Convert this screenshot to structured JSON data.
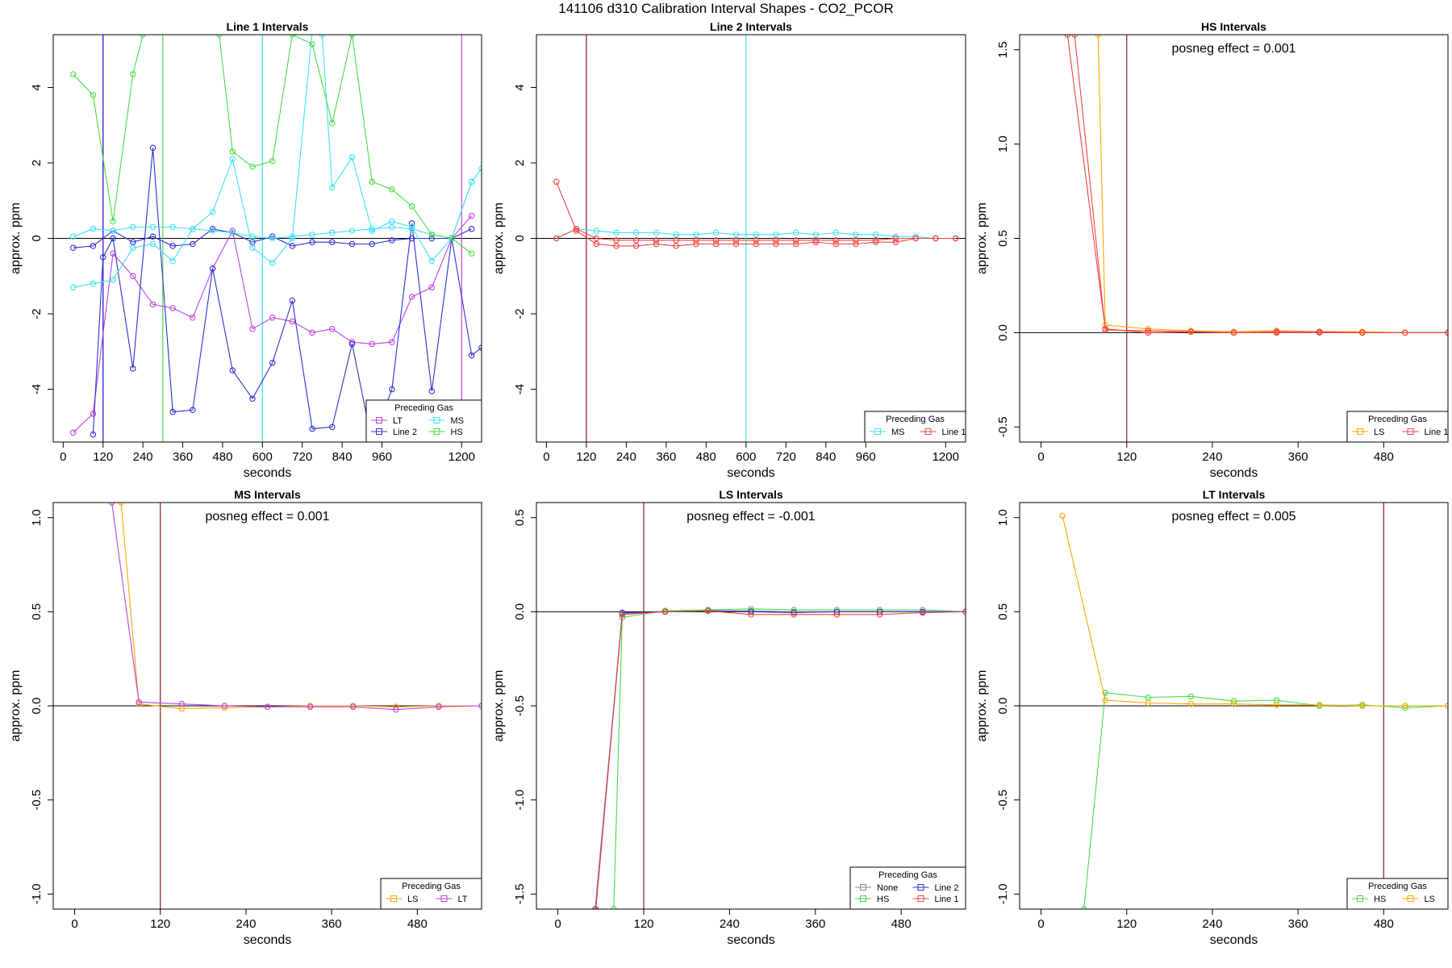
{
  "figure": {
    "title": "141106  d310   Calibration Interval Shapes - CO2_PCOR"
  },
  "chart_data": [
    {
      "type": "line",
      "title": "Line 1 Intervals",
      "xlabel": "seconds",
      "ylabel": "approx. ppm",
      "xlim": [
        -30,
        1260
      ],
      "ylim": [
        -5.4,
        5.4
      ],
      "xticks": [
        0,
        120,
        240,
        360,
        480,
        600,
        720,
        840,
        960,
        1200
      ],
      "yticks": [
        -4,
        -2,
        0,
        2,
        4
      ],
      "legend": {
        "title": "Preceding Gas",
        "position": "bottom-right",
        "columns": 2
      },
      "annotation": "",
      "vlines": [
        {
          "x": 120,
          "color": "#7a1fd0"
        },
        {
          "x": 120,
          "color": "#3030d0"
        },
        {
          "x": 300,
          "color": "#44dd44"
        },
        {
          "x": 600,
          "color": "#40e0f0"
        },
        {
          "x": 1200,
          "color": "#cc44dd"
        }
      ],
      "series": [
        {
          "name": "LT",
          "color": "#bb44dd",
          "x": [
            30,
            90,
            150,
            210,
            270,
            330,
            390,
            450,
            510,
            570,
            630,
            690,
            750,
            810,
            870,
            930,
            990,
            1050,
            1110,
            1170,
            1230
          ],
          "y": [
            -5.15,
            -4.65,
            -0.4,
            -1.0,
            -1.75,
            -1.85,
            -2.1,
            -0.8,
            0.2,
            -2.4,
            -2.1,
            -2.2,
            -2.5,
            -2.4,
            -2.75,
            -2.8,
            -2.75,
            -1.55,
            -1.3,
            0.0,
            0.6
          ]
        },
        {
          "name": "Line 2",
          "color": "#3030d0",
          "x": [
            30,
            90,
            150,
            210,
            270,
            330,
            390,
            450,
            510,
            570,
            630,
            690,
            750,
            810,
            870,
            930,
            990,
            1050,
            1110,
            1170,
            1230
          ],
          "y": [
            -0.25,
            -0.2,
            0.2,
            -0.1,
            0.05,
            -0.2,
            -0.15,
            0.25,
            0.15,
            -0.1,
            0.05,
            -0.2,
            -0.1,
            -0.1,
            -0.15,
            -0.15,
            -0.05,
            0.0,
            0.0,
            0.0,
            0.25
          ]
        },
        {
          "name": "Line 2",
          "color": "#3030d0",
          "x": [
            90,
            120,
            150,
            210,
            270,
            330,
            390,
            450,
            510,
            570,
            630,
            690,
            750,
            810,
            870,
            930,
            990,
            1050,
            1110,
            1170,
            1230,
            1260
          ],
          "y": [
            -5.2,
            -0.5,
            0.0,
            -3.45,
            2.4,
            -4.6,
            -4.55,
            -0.8,
            -3.5,
            -4.25,
            -3.3,
            -1.65,
            -5.05,
            -5.0,
            -2.8,
            -5.4,
            -4.0,
            0.4,
            -4.05,
            0.0,
            -3.1,
            -2.9
          ]
        },
        {
          "name": "MS",
          "color": "#40e0f0",
          "x": [
            30,
            90,
            150,
            210,
            270,
            330,
            390,
            450,
            510,
            570,
            630,
            690,
            750,
            810,
            870,
            930,
            990,
            1050,
            1110,
            1170,
            1230
          ],
          "y": [
            0.05,
            0.25,
            0.2,
            0.3,
            0.3,
            0.3,
            0.25,
            0.2,
            0.15,
            0.05,
            0.0,
            0.05,
            0.1,
            0.15,
            0.2,
            0.25,
            0.3,
            0.25,
            0.1,
            0.0,
            1.5
          ]
        },
        {
          "name": "MS",
          "color": "#40e0f0",
          "x": [
            30,
            90,
            150,
            210,
            270,
            330,
            390,
            450,
            510,
            570,
            630,
            690,
            750,
            780,
            810,
            870,
            930,
            990,
            1050,
            1110,
            1170,
            1230,
            1260
          ],
          "y": [
            -1.3,
            -1.2,
            -1.1,
            -0.25,
            -0.15,
            -0.6,
            0.25,
            0.7,
            2.1,
            -0.25,
            -0.65,
            0.0,
            5.5,
            5.4,
            1.35,
            2.15,
            0.2,
            0.45,
            0.3,
            -0.6,
            0.0,
            1.5,
            1.85
          ]
        },
        {
          "name": "HS",
          "color": "#44dd44",
          "x": [
            30,
            90,
            150,
            210,
            240,
            470,
            510,
            570,
            630,
            690,
            750,
            810,
            870,
            930,
            990,
            1050,
            1110,
            1170,
            1230
          ],
          "y": [
            4.35,
            3.8,
            0.45,
            4.35,
            5.4,
            5.4,
            2.3,
            1.9,
            2.05,
            5.4,
            5.15,
            3.05,
            5.4,
            1.5,
            1.3,
            0.85,
            0.1,
            0.0,
            -0.4
          ]
        }
      ]
    },
    {
      "type": "line",
      "title": "Line 2 Intervals",
      "xlabel": "seconds",
      "ylabel": "approx. ppm",
      "xlim": [
        -30,
        1260
      ],
      "ylim": [
        -5.4,
        5.4
      ],
      "xticks": [
        0,
        120,
        240,
        360,
        480,
        600,
        720,
        840,
        960,
        1200
      ],
      "yticks": [
        -4,
        -2,
        0,
        2,
        4
      ],
      "legend": {
        "title": "Preceding Gas",
        "position": "bottom-right",
        "columns": 2
      },
      "annotation": "",
      "vlines": [
        {
          "x": 120,
          "color": "#8b1a1a"
        },
        {
          "x": 600,
          "color": "#40e0f0"
        }
      ],
      "series": [
        {
          "name": "MS",
          "color": "#40e0f0",
          "x": [
            30,
            90,
            150,
            210,
            270,
            330,
            390,
            450,
            510,
            570,
            630,
            690,
            750,
            810,
            870,
            930,
            990,
            1050,
            1110,
            1170,
            1230
          ],
          "y": [
            0.0,
            0.25,
            0.2,
            0.15,
            0.15,
            0.15,
            0.1,
            0.1,
            0.15,
            0.1,
            0.1,
            0.1,
            0.15,
            0.1,
            0.15,
            0.1,
            0.1,
            0.05,
            0.05,
            0.0,
            0.0
          ]
        },
        {
          "name": "Line 1",
          "color": "#ee4444",
          "x": [
            30,
            90,
            150,
            210,
            270,
            330,
            390,
            450,
            510,
            570,
            630,
            690,
            750,
            810,
            870,
            930,
            990,
            1050,
            1110,
            1170,
            1230
          ],
          "y": [
            1.5,
            0.2,
            -0.15,
            -0.2,
            -0.2,
            -0.15,
            -0.2,
            -0.15,
            -0.15,
            -0.15,
            -0.15,
            -0.15,
            -0.15,
            -0.1,
            -0.15,
            -0.15,
            -0.1,
            -0.1,
            0.0,
            0.0,
            0.0
          ]
        },
        {
          "name": "Line 1",
          "color": "#ee4444",
          "x": [
            30,
            90,
            150,
            210,
            270,
            330,
            390,
            450,
            510,
            570,
            630,
            690,
            750,
            810,
            870,
            930,
            990,
            1050,
            1110,
            1170,
            1230
          ],
          "y": [
            0.0,
            0.25,
            0.0,
            -0.05,
            -0.05,
            -0.05,
            -0.05,
            -0.05,
            -0.05,
            -0.05,
            -0.05,
            -0.05,
            -0.05,
            -0.05,
            -0.05,
            -0.05,
            -0.05,
            0.0,
            0.0,
            0.0,
            0.0
          ]
        }
      ]
    },
    {
      "type": "line",
      "title": "HS Intervals",
      "xlabel": "seconds",
      "ylabel": "approx. ppm",
      "xlim": [
        -30,
        570
      ],
      "ylim": [
        -0.58,
        1.58
      ],
      "xticks": [
        0,
        120,
        240,
        360,
        480
      ],
      "yticks": [
        -0.5,
        0.0,
        0.5,
        1.0,
        1.5
      ],
      "legend": {
        "title": "Preceding Gas",
        "position": "bottom-right",
        "columns": 2
      },
      "annotation": "posneg effect = 0.001",
      "vlines": [
        {
          "x": 120,
          "color": "#8b1a1a"
        }
      ],
      "series": [
        {
          "name": "LS",
          "color": "#ffa500",
          "x": [
            80,
            90,
            150,
            210,
            270,
            330,
            390,
            450,
            510,
            570
          ],
          "y": [
            1.58,
            0.04,
            0.02,
            0.01,
            0.005,
            0.01,
            0.005,
            0.005,
            0.0,
            0.0
          ]
        },
        {
          "name": "Line 1",
          "color": "#ee4444",
          "x": [
            37,
            90,
            150,
            210,
            270,
            330,
            390,
            450,
            510,
            570
          ],
          "y": [
            1.58,
            0.02,
            0.0,
            0.005,
            0.0,
            0.0,
            0.0,
            0.0,
            0.0,
            0.0
          ]
        },
        {
          "name": "Line 1",
          "color": "#ee4444",
          "x": [
            47,
            90,
            150,
            210,
            270,
            330,
            390,
            450,
            510,
            570
          ],
          "y": [
            1.58,
            0.015,
            0.01,
            0.005,
            0.0,
            0.005,
            0.005,
            0.0,
            0.0,
            0.0
          ]
        }
      ]
    },
    {
      "type": "line",
      "title": "MS Intervals",
      "xlabel": "seconds",
      "ylabel": "approx. ppm",
      "xlim": [
        -30,
        570
      ],
      "ylim": [
        -1.08,
        1.08
      ],
      "xticks": [
        0,
        120,
        240,
        360,
        480
      ],
      "yticks": [
        -1.0,
        -0.5,
        0.0,
        0.5,
        1.0
      ],
      "legend": {
        "title": "Preceding Gas",
        "position": "bottom-right",
        "columns": 2
      },
      "annotation": "posneg effect = 0.001",
      "vlines": [
        {
          "x": 120,
          "color": "#8b1a1a"
        }
      ],
      "series": [
        {
          "name": "LS",
          "color": "#ffa500",
          "x": [
            65,
            90,
            150,
            210,
            270,
            330,
            390,
            450,
            510,
            570
          ],
          "y": [
            1.08,
            0.01,
            -0.015,
            -0.01,
            -0.005,
            0.0,
            0.0,
            -0.005,
            0.0,
            0.0
          ]
        },
        {
          "name": "LT",
          "color": "#bb44dd",
          "x": [
            52,
            90,
            150,
            210,
            270,
            330,
            390,
            450,
            510,
            570
          ],
          "y": [
            1.08,
            0.02,
            0.01,
            0.0,
            -0.005,
            -0.005,
            -0.005,
            -0.02,
            -0.005,
            0.0
          ]
        }
      ]
    },
    {
      "type": "line",
      "title": "LS Intervals",
      "xlabel": "seconds",
      "ylabel": "approx. ppm",
      "xlim": [
        -30,
        570
      ],
      "ylim": [
        -1.58,
        0.58
      ],
      "xticks": [
        0,
        120,
        240,
        360,
        480
      ],
      "yticks": [
        -1.5,
        -1.0,
        -0.5,
        0.0,
        0.5
      ],
      "legend": {
        "title": "Preceding Gas",
        "position": "bottom-right",
        "columns": 2
      },
      "annotation": "posneg effect = -0.001",
      "vlines": [
        {
          "x": 120,
          "color": "#8b1a1a"
        }
      ],
      "series": [
        {
          "name": "None",
          "color": "#888888",
          "x": [
            52,
            90,
            150,
            210,
            270,
            330,
            390,
            450,
            510,
            570
          ],
          "y": [
            -1.58,
            -0.01,
            0.0,
            0.005,
            0.005,
            0.0,
            0.0,
            0.0,
            0.0,
            0.0
          ]
        },
        {
          "name": "HS",
          "color": "#44dd44",
          "x": [
            78,
            90,
            150,
            210,
            270,
            330,
            390,
            450,
            510,
            570
          ],
          "y": [
            -1.58,
            -0.03,
            0.005,
            0.01,
            0.015,
            0.01,
            0.01,
            0.01,
            0.01,
            0.0
          ]
        },
        {
          "name": "Line 2",
          "color": "#3030d0",
          "x": [
            53,
            90,
            150,
            210,
            270,
            330,
            390,
            450,
            510,
            570
          ],
          "y": [
            -1.58,
            -0.005,
            0.0,
            0.005,
            0.0,
            -0.005,
            0.0,
            0.0,
            0.0,
            0.0
          ]
        },
        {
          "name": "Line 1",
          "color": "#ee4444",
          "x": [
            53,
            90,
            150,
            210,
            270,
            330,
            390,
            450,
            510,
            570
          ],
          "y": [
            -1.58,
            -0.015,
            0.0,
            0.005,
            -0.015,
            -0.015,
            -0.015,
            -0.015,
            -0.005,
            0.0
          ]
        }
      ]
    },
    {
      "type": "line",
      "title": "LT Intervals",
      "xlabel": "seconds",
      "ylabel": "approx. ppm",
      "xlim": [
        -30,
        570
      ],
      "ylim": [
        -1.08,
        1.08
      ],
      "xticks": [
        0,
        120,
        240,
        360,
        480
      ],
      "yticks": [
        -1.0,
        -0.5,
        0.0,
        0.5,
        1.0
      ],
      "legend": {
        "title": "Preceding Gas",
        "position": "bottom-right",
        "columns": 2
      },
      "annotation": "posneg effect = 0.005",
      "vlines": [
        {
          "x": 480,
          "color": "#8b1a1a"
        }
      ],
      "series": [
        {
          "name": "HS",
          "color": "#44dd44",
          "x": [
            60,
            90,
            150,
            210,
            270,
            330,
            390,
            450,
            510,
            570
          ],
          "y": [
            -1.08,
            0.07,
            0.045,
            0.05,
            0.025,
            0.03,
            0.0,
            0.005,
            -0.01,
            0.0
          ]
        },
        {
          "name": "LS",
          "color": "#ffa500",
          "x": [
            30,
            90,
            150,
            210,
            270,
            330,
            390,
            450,
            510,
            570
          ],
          "y": [
            1.01,
            0.03,
            0.015,
            0.01,
            0.01,
            0.005,
            0.005,
            0.0,
            0.0,
            0.0
          ]
        }
      ]
    }
  ]
}
